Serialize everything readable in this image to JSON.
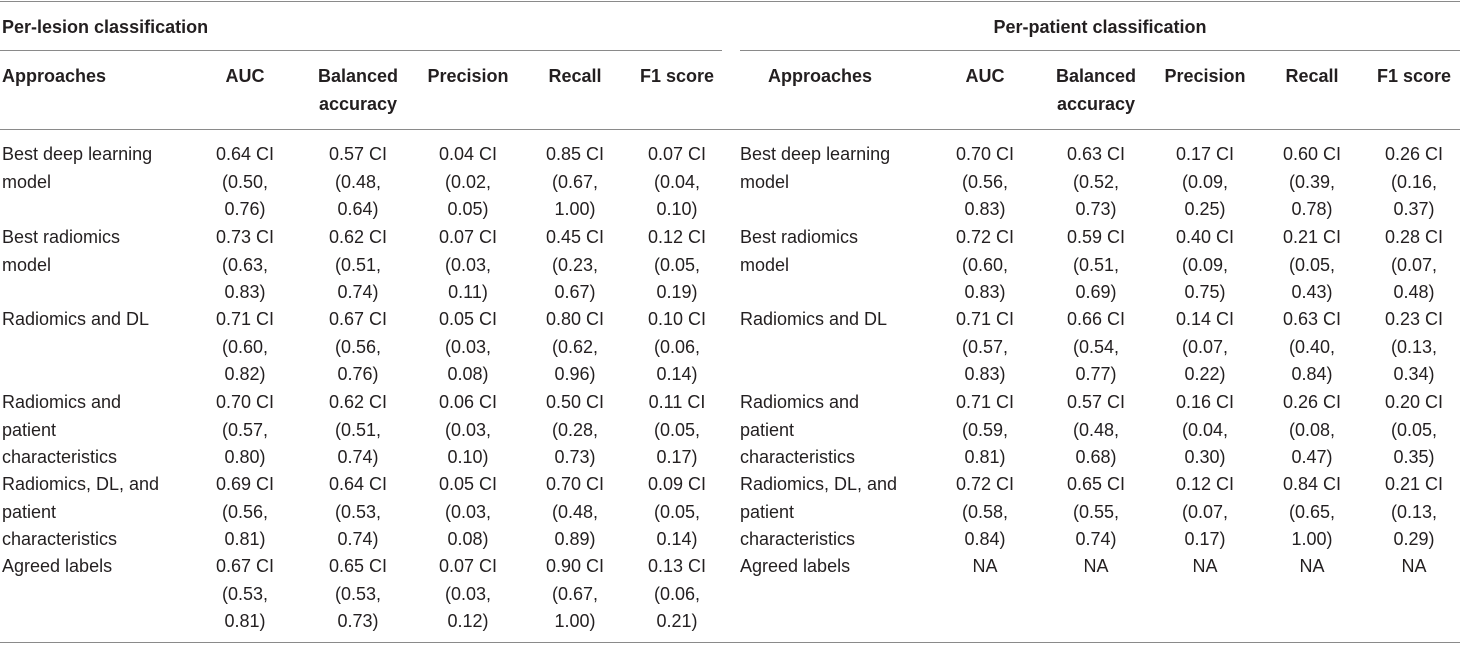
{
  "groups": {
    "lesion": "Per-lesion classification",
    "patient": "Per-patient classification"
  },
  "headers": [
    "Approaches",
    "AUC",
    "Balanced\naccuracy",
    "Precision",
    "Recall",
    "F1 score"
  ],
  "rows": [
    {
      "approach": "Best deep learning\nmodel",
      "lesion": [
        "0.64 CI\n(0.50,\n0.76)",
        "0.57 CI\n(0.48,\n0.64)",
        "0.04 CI\n(0.02,\n0.05)",
        "0.85 CI\n(0.67,\n1.00)",
        "0.07 CI\n(0.04,\n0.10)"
      ],
      "patient": [
        "0.70 CI\n(0.56,\n0.83)",
        "0.63 CI\n(0.52,\n0.73)",
        "0.17 CI\n(0.09,\n0.25)",
        "0.60 CI\n(0.39,\n0.78)",
        "0.26 CI\n(0.16,\n0.37)"
      ]
    },
    {
      "approach": "Best radiomics\nmodel",
      "lesion": [
        "0.73 CI\n(0.63,\n0.83)",
        "0.62 CI\n(0.51,\n0.74)",
        "0.07 CI\n(0.03,\n0.11)",
        "0.45 CI\n(0.23,\n0.67)",
        "0.12 CI\n(0.05,\n0.19)"
      ],
      "patient": [
        "0.72 CI\n(0.60,\n0.83)",
        "0.59 CI\n(0.51,\n0.69)",
        "0.40 CI\n(0.09,\n0.75)",
        "0.21 CI\n(0.05,\n0.43)",
        "0.28 CI\n(0.07,\n0.48)"
      ]
    },
    {
      "approach": "Radiomics and DL",
      "lesion": [
        "0.71 CI\n(0.60,\n0.82)",
        "0.67 CI\n(0.56,\n0.76)",
        "0.05 CI\n(0.03,\n0.08)",
        "0.80 CI\n(0.62,\n0.96)",
        "0.10 CI\n(0.06,\n0.14)"
      ],
      "patient": [
        "0.71 CI\n(0.57,\n0.83)",
        "0.66 CI\n(0.54,\n0.77)",
        "0.14 CI\n(0.07,\n0.22)",
        "0.63 CI\n(0.40,\n0.84)",
        "0.23 CI\n(0.13,\n0.34)"
      ]
    },
    {
      "approach": "Radiomics and\npatient\ncharacteristics",
      "lesion": [
        "0.70 CI\n(0.57,\n0.80)",
        "0.62 CI\n(0.51,\n0.74)",
        "0.06 CI\n(0.03,\n0.10)",
        "0.50 CI\n(0.28,\n0.73)",
        "0.11 CI\n(0.05,\n0.17)"
      ],
      "patient": [
        "0.71 CI\n(0.59,\n0.81)",
        "0.57 CI\n(0.48,\n0.68)",
        "0.16 CI\n(0.04,\n0.30)",
        "0.26 CI\n(0.08,\n0.47)",
        "0.20 CI\n(0.05,\n0.35)"
      ]
    },
    {
      "approach": "Radiomics, DL, and\npatient\ncharacteristics",
      "lesion": [
        "0.69 CI\n(0.56,\n0.81)",
        "0.64 CI\n(0.53,\n0.74)",
        "0.05 CI\n(0.03,\n0.08)",
        "0.70 CI\n(0.48,\n0.89)",
        "0.09 CI\n(0.05,\n0.14)"
      ],
      "patient": [
        "0.72 CI\n(0.58,\n0.84)",
        "0.65 CI\n(0.55,\n0.74)",
        "0.12 CI\n(0.07,\n0.17)",
        "0.84 CI\n(0.65,\n1.00)",
        "0.21 CI\n(0.13,\n0.29)"
      ]
    },
    {
      "approach": "Agreed labels",
      "lesion": [
        "0.67 CI\n(0.53,\n0.81)",
        "0.65 CI\n(0.53,\n0.73)",
        "0.07 CI\n(0.03,\n0.12)",
        "0.90 CI\n(0.67,\n1.00)",
        "0.13 CI\n(0.06,\n0.21)"
      ],
      "patient": [
        "NA",
        "NA",
        "NA",
        "NA",
        "NA"
      ]
    }
  ]
}
